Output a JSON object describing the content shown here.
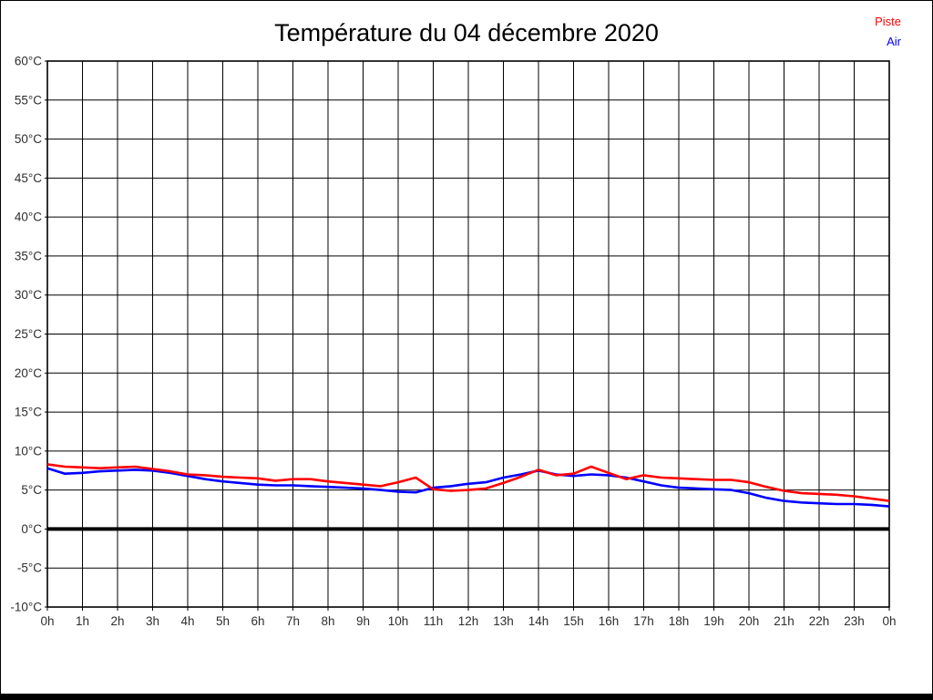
{
  "page": {
    "title": "Température du 04 décembre 2020"
  },
  "legend": [
    {
      "label": "Piste",
      "color": "#ff0000"
    },
    {
      "label": "Air",
      "color": "#0000ff"
    }
  ],
  "chart_data": {
    "type": "line",
    "title": "Température du 04 décembre 2020",
    "xlabel": "",
    "ylabel": "",
    "xlim": [
      0,
      24
    ],
    "ylim": [
      -10,
      60
    ],
    "y_tick_step": 5,
    "grid": true,
    "zero_line": true,
    "legend_position": "top-right",
    "x_tick_labels": [
      "0h",
      "1h",
      "2h",
      "3h",
      "4h",
      "5h",
      "6h",
      "7h",
      "8h",
      "9h",
      "10h",
      "11h",
      "12h",
      "13h",
      "14h",
      "15h",
      "16h",
      "17h",
      "18h",
      "19h",
      "20h",
      "21h",
      "22h",
      "23h",
      "0h"
    ],
    "y_tick_labels": [
      "60°C",
      "55°C",
      "50°C",
      "45°C",
      "40°C",
      "35°C",
      "30°C",
      "25°C",
      "20°C",
      "15°C",
      "10°C",
      "5°C",
      "0°C",
      "-5°C",
      "-10°C"
    ],
    "x_unit": "hours",
    "y_unit": "°C",
    "x": [
      0,
      0.5,
      1,
      1.5,
      2,
      2.5,
      3,
      3.5,
      4,
      4.5,
      5,
      5.5,
      6,
      6.5,
      7,
      7.5,
      8,
      8.5,
      9,
      9.5,
      10,
      10.5,
      11,
      11.5,
      12,
      12.5,
      13,
      13.5,
      14,
      14.5,
      15,
      15.5,
      16,
      16.5,
      17,
      17.5,
      18,
      18.5,
      19,
      19.5,
      20,
      20.5,
      21,
      21.5,
      22,
      22.5,
      23,
      23.5,
      24
    ],
    "series": [
      {
        "name": "Piste",
        "color": "#ff0000",
        "values": [
          8.3,
          8.0,
          7.9,
          7.8,
          7.9,
          8.0,
          7.7,
          7.4,
          7.0,
          6.9,
          6.7,
          6.6,
          6.5,
          6.2,
          6.4,
          6.4,
          6.1,
          5.9,
          5.7,
          5.5,
          6.0,
          6.6,
          5.1,
          4.9,
          5.0,
          5.2,
          5.9,
          6.7,
          7.6,
          6.9,
          7.1,
          8.0,
          7.2,
          6.4,
          6.9,
          6.6,
          6.5,
          6.4,
          6.3,
          6.3,
          6.0,
          5.4,
          4.9,
          4.6,
          4.5,
          4.4,
          4.2,
          3.9,
          3.6
        ]
      },
      {
        "name": "Air",
        "color": "#0000ff",
        "values": [
          7.8,
          7.1,
          7.2,
          7.4,
          7.5,
          7.6,
          7.5,
          7.2,
          6.8,
          6.4,
          6.1,
          5.9,
          5.7,
          5.6,
          5.6,
          5.5,
          5.4,
          5.3,
          5.2,
          5.0,
          4.8,
          4.7,
          5.3,
          5.5,
          5.8,
          6.0,
          6.6,
          7.0,
          7.5,
          7.0,
          6.8,
          7.0,
          6.9,
          6.6,
          6.1,
          5.6,
          5.3,
          5.2,
          5.1,
          5.0,
          4.6,
          4.0,
          3.6,
          3.4,
          3.3,
          3.2,
          3.2,
          3.1,
          2.9
        ]
      }
    ]
  }
}
